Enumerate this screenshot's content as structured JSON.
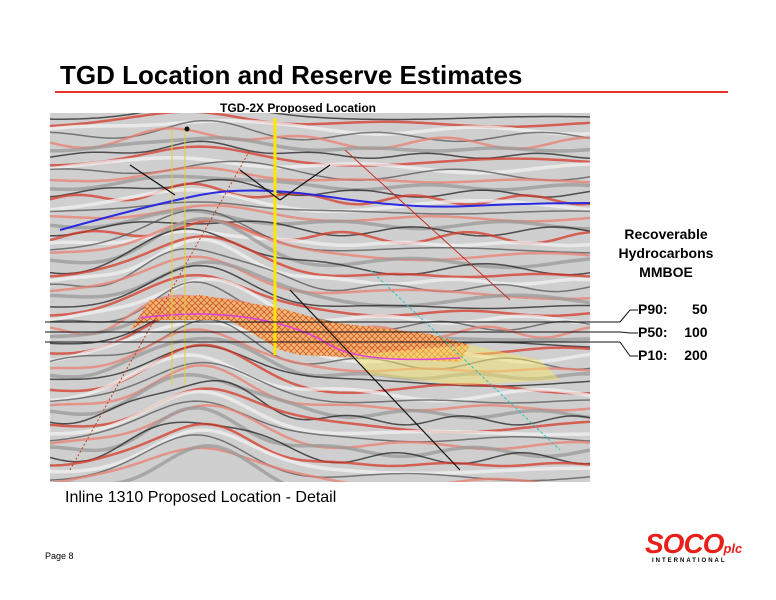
{
  "header": {
    "title": "TGD Location and Reserve Estimates"
  },
  "section": {
    "well_label": "TGD-2X Proposed Location",
    "reserves_heading": [
      "Recoverable",
      "Hydrocarbons",
      "MMBOE"
    ],
    "estimates": [
      {
        "label": "P90:",
        "value": 50
      },
      {
        "label": "P50:",
        "value": 100
      },
      {
        "label": "P10:",
        "value": 200
      }
    ],
    "caption": "Inline 1310 Proposed Location - Detail"
  },
  "footer": {
    "page": "Page 8",
    "logo": {
      "name": "SOCO",
      "suffix": "plc",
      "sub": "INTERNATIONAL"
    }
  }
}
